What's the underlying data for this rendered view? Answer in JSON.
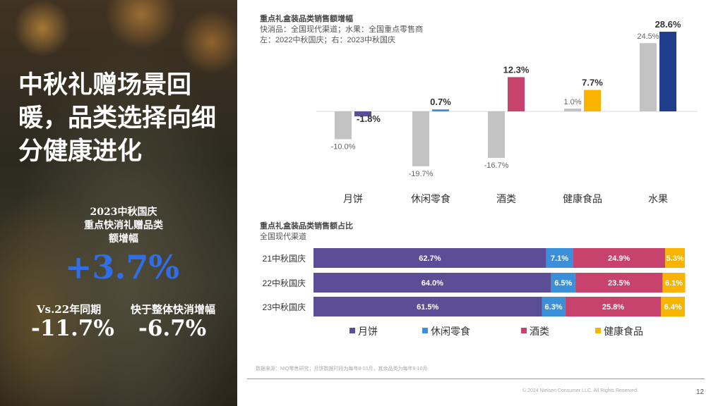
{
  "left": {
    "headline": "中秋礼赠场景回暖，品类选择向细分健康进化",
    "subhead_lines": [
      "2023中秋国庆",
      "重点快消礼赠品类",
      "额增幅"
    ],
    "big_value": "+3.7%",
    "stat1_label": "Vs.22年同期",
    "stat1_value": "-11.7%",
    "stat2_label": "快于整体快消增幅",
    "stat2_value": "-6.7%"
  },
  "chart_data": [
    {
      "type": "bar",
      "title": "重点礼盒装品类销售额增幅",
      "subtitle1": "快消品：全国现代渠道；水果：全国重点零售商",
      "subtitle2": "左：2022中秋国庆；右：2023中秋国庆",
      "categories": [
        "月饼",
        "休闲零食",
        "酒类",
        "健康食品",
        "水果"
      ],
      "series": [
        {
          "name": "2022中秋国庆",
          "values": [
            -10.0,
            -19.7,
            -16.7,
            1.0,
            24.5
          ],
          "labels": [
            "-10.0%",
            "-19.7%",
            "-16.7%",
            "1.0%",
            "24.5%"
          ],
          "color": "#c3c3c3"
        },
        {
          "name": "2023中秋国庆",
          "values": [
            -1.8,
            0.7,
            12.3,
            7.7,
            28.6
          ],
          "labels": [
            "-1.8%",
            "0.7%",
            "12.3%",
            "7.7%",
            "28.6%"
          ],
          "colors": [
            "#5b4e96",
            "#3b8fd9",
            "#c8426e",
            "#f8b400",
            "#1f3f8c"
          ]
        }
      ],
      "unit": "%"
    },
    {
      "type": "bar",
      "stacked": true,
      "orientation": "horizontal",
      "title": "重点礼盒装品类销售额占比",
      "subtitle": "全国现代渠道",
      "categories": [
        "21中秋国庆",
        "22中秋国庆",
        "23中秋国庆"
      ],
      "series": [
        {
          "name": "月饼",
          "color": "#5b4e96",
          "values": [
            62.7,
            64.0,
            61.5
          ]
        },
        {
          "name": "休闲零食",
          "color": "#3b8fd9",
          "values": [
            7.1,
            6.5,
            6.3
          ]
        },
        {
          "name": "酒类",
          "color": "#c8426e",
          "values": [
            24.9,
            23.5,
            25.8
          ]
        },
        {
          "name": "健康食品",
          "color": "#f8b400",
          "values": [
            5.3,
            6.1,
            6.4
          ]
        }
      ],
      "unit": "%"
    }
  ],
  "footer": {
    "source": "数据来源：NIQ零售研究；月饼数据时段为每年8-10月，其余品类为每年9-10月",
    "copyright": "© 2024 Nielsen Consumer LLC. All Rights Reserved.",
    "page": "12"
  }
}
